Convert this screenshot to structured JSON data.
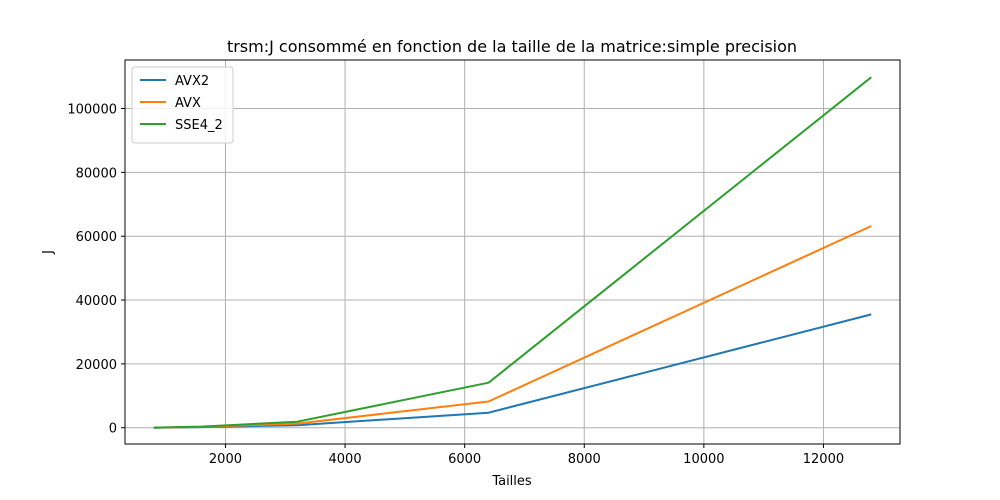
{
  "chart_data": {
    "type": "line",
    "title": "trsm:J consommé en fonction de la taille de la matrice:simple precision",
    "xlabel": "Tailles",
    "ylabel": "J",
    "x": [
      800,
      1600,
      3200,
      6400,
      12800
    ],
    "xlim": [
      320,
      13280
    ],
    "ylim": [
      -5100,
      115200
    ],
    "xticks": [
      2000,
      4000,
      6000,
      8000,
      10000,
      12000
    ],
    "yticks": [
      0,
      20000,
      40000,
      60000,
      80000,
      100000
    ],
    "grid": true,
    "legend_position": "top-left",
    "series": [
      {
        "name": "AVX2",
        "color": "#1f77b4",
        "values": [
          20,
          200,
          800,
          4700,
          35500
        ]
      },
      {
        "name": "AVX",
        "color": "#ff7f0e",
        "values": [
          30,
          250,
          1300,
          8200,
          63200
        ]
      },
      {
        "name": "SSE4_2",
        "color": "#2ca02c",
        "values": [
          50,
          350,
          1900,
          14100,
          109800
        ]
      }
    ]
  }
}
